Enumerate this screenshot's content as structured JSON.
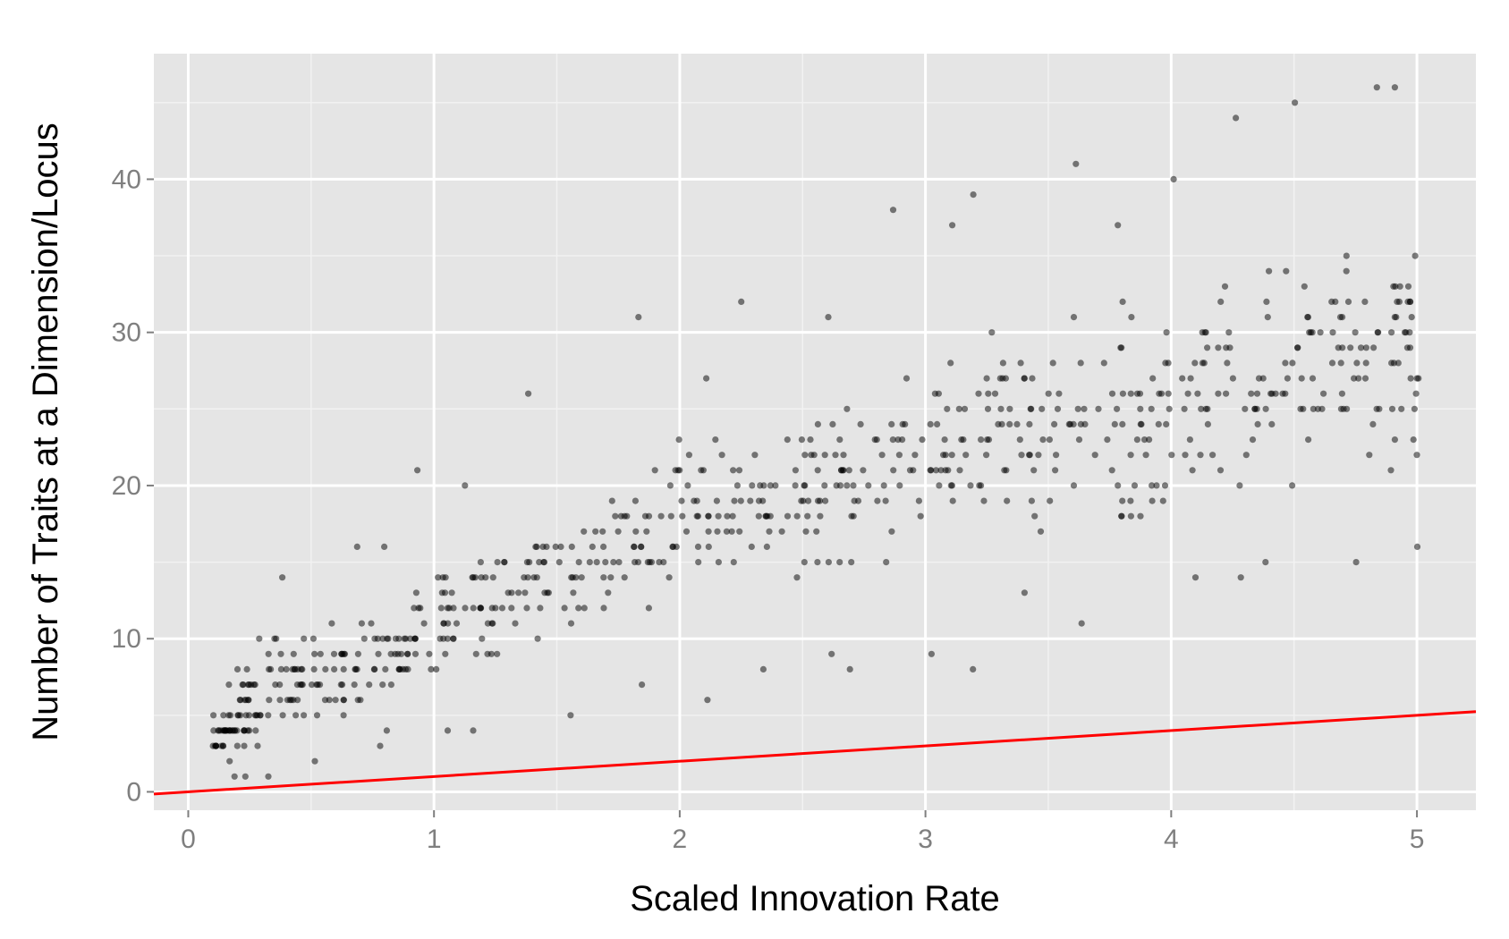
{
  "chart_data": {
    "type": "scatter",
    "title": "",
    "xlabel": "Scaled Innovation Rate",
    "ylabel": "Number of Traits at a Dimension/Locus",
    "xlim": [
      -0.14,
      5.24
    ],
    "ylim": [
      -1.2,
      48.2
    ],
    "x_ticks": [
      0,
      1,
      2,
      3,
      4,
      5
    ],
    "y_ticks": [
      0,
      10,
      20,
      30,
      40
    ],
    "x_tick_labels": [
      "0",
      "1",
      "2",
      "3",
      "4",
      "5"
    ],
    "y_tick_labels": [
      "0",
      "10",
      "20",
      "30",
      "40"
    ],
    "grid": true,
    "legend": "none",
    "colors": {
      "panel_background": "#e5e5e5",
      "grid_major": "#ffffff",
      "points": "#000000",
      "reference_line": "#ff0000"
    },
    "reference_line": {
      "name": "",
      "slope": 1,
      "intercept": 0
    },
    "series": [
      {
        "name": "",
        "points_per_bin": 35,
        "bins": [
          {
            "x": 0.15,
            "mean": 3.5,
            "spread": 1.6,
            "min": 1,
            "max": 7
          },
          {
            "x": 0.25,
            "mean": 5.5,
            "spread": 2.0,
            "min": 1,
            "max": 10
          },
          {
            "x": 0.4,
            "mean": 7,
            "spread": 2.3,
            "min": 1,
            "max": 14
          },
          {
            "x": 0.6,
            "mean": 8,
            "spread": 2.5,
            "min": 2,
            "max": 16
          },
          {
            "x": 0.8,
            "mean": 9,
            "spread": 2.6,
            "min": 3,
            "max": 16
          },
          {
            "x": 1.0,
            "mean": 11,
            "spread": 3.0,
            "min": 4,
            "max": 21
          },
          {
            "x": 1.25,
            "mean": 12.5,
            "spread": 3.2,
            "min": 4,
            "max": 20
          },
          {
            "x": 1.5,
            "mean": 14,
            "spread": 3.4,
            "min": 5,
            "max": 26
          },
          {
            "x": 1.75,
            "mean": 16,
            "spread": 3.6,
            "min": 7,
            "max": 31
          },
          {
            "x": 2.0,
            "mean": 17.5,
            "spread": 3.8,
            "min": 6,
            "max": 27
          },
          {
            "x": 2.25,
            "mean": 18.5,
            "spread": 4.0,
            "min": 8,
            "max": 32
          },
          {
            "x": 2.5,
            "mean": 19.5,
            "spread": 4.2,
            "min": 9,
            "max": 31
          },
          {
            "x": 2.75,
            "mean": 20.5,
            "spread": 4.4,
            "min": 8,
            "max": 38
          },
          {
            "x": 3.0,
            "mean": 22,
            "spread": 4.6,
            "min": 9,
            "max": 37
          },
          {
            "x": 3.25,
            "mean": 23,
            "spread": 4.8,
            "min": 8,
            "max": 39
          },
          {
            "x": 3.5,
            "mean": 24.5,
            "spread": 5.0,
            "min": 13,
            "max": 41
          },
          {
            "x": 3.75,
            "mean": 24.5,
            "spread": 5.0,
            "min": 11,
            "max": 37
          },
          {
            "x": 4.0,
            "mean": 25,
            "spread": 5.2,
            "min": 14,
            "max": 40
          },
          {
            "x": 4.25,
            "mean": 26,
            "spread": 5.4,
            "min": 14,
            "max": 44
          },
          {
            "x": 4.5,
            "mean": 27.5,
            "spread": 5.6,
            "min": 15,
            "max": 45
          },
          {
            "x": 4.75,
            "mean": 29,
            "spread": 5.8,
            "min": 15,
            "max": 46
          },
          {
            "x": 4.95,
            "mean": 29,
            "spread": 6.0,
            "min": 16,
            "max": 46
          }
        ]
      }
    ]
  }
}
